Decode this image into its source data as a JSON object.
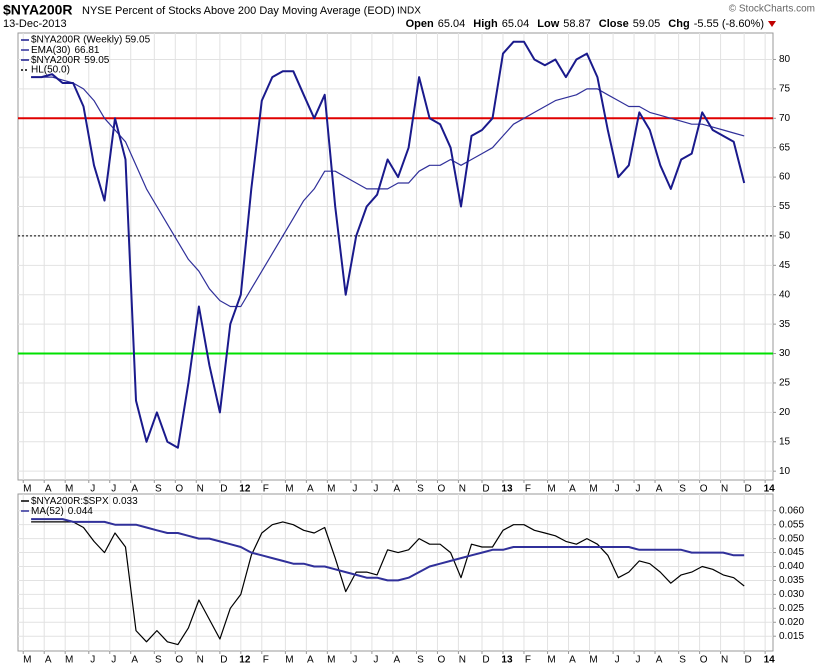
{
  "chart_data": [
    {
      "type": "line",
      "title": "$NYA200R",
      "subtitle": "NYSE Percent of Stocks Above 200 Day Moving Average (EOD)",
      "exchange": "INDX",
      "date": "13-Dec-2013",
      "source": "© StockCharts.com",
      "quote": [
        {
          "label": "Open",
          "value": 65.04
        },
        {
          "label": "High",
          "value": 65.04
        },
        {
          "label": "Low",
          "value": 58.87
        },
        {
          "label": "Close",
          "value": 59.05
        },
        {
          "label": "Chg",
          "value": "-5.55 (-8.60%)"
        }
      ],
      "price_legend": "$NYA200R (Weekly) 59.05",
      "x": [
        2011.2,
        2011.24,
        2011.28,
        2011.32,
        2011.36,
        2011.4,
        2011.44,
        2011.48,
        2011.52,
        2011.56,
        2011.6,
        2011.64,
        2011.68,
        2011.72,
        2011.76,
        2011.8,
        2011.84,
        2011.88,
        2011.92,
        2011.96,
        2012,
        2012.04,
        2012.08,
        2012.12,
        2012.16,
        2012.2,
        2012.24,
        2012.28,
        2012.32,
        2012.36,
        2012.4,
        2012.44,
        2012.48,
        2012.52,
        2012.56,
        2012.6,
        2012.64,
        2012.68,
        2012.72,
        2012.76,
        2012.8,
        2012.84,
        2012.88,
        2012.92,
        2012.96,
        2013,
        2013.04,
        2013.08,
        2013.12,
        2013.16,
        2013.2,
        2013.24,
        2013.28,
        2013.32,
        2013.36,
        2013.4,
        2013.44,
        2013.48,
        2013.52,
        2013.56,
        2013.6,
        2013.64,
        2013.68,
        2013.72,
        2013.76,
        2013.8,
        2013.84,
        2013.88,
        2013.92
      ],
      "series": [
        {
          "name": "EMA(30)",
          "legend_value": 66.81,
          "color": "#30309a",
          "values": [
            77,
            77,
            77,
            76.5,
            76,
            75,
            73,
            70,
            68,
            66,
            62,
            58,
            55,
            52,
            49,
            46,
            44,
            41,
            39,
            38,
            38,
            41,
            44,
            47,
            50,
            53,
            56,
            58,
            61,
            61,
            60,
            59,
            58,
            58,
            58,
            59,
            59,
            61,
            62,
            62,
            63,
            62,
            63,
            64,
            65,
            67,
            69,
            70,
            71,
            72,
            73,
            73.5,
            74,
            75,
            75,
            74,
            73,
            72,
            72,
            71,
            70.5,
            70,
            69.5,
            69,
            69,
            68.5,
            68,
            67.5,
            67
          ]
        },
        {
          "name": "$NYA200R",
          "legend_value": 59.05,
          "color": "#1a1a8c",
          "values": [
            77,
            77,
            77.5,
            76,
            76,
            72,
            62,
            56,
            70,
            63,
            22,
            15,
            20,
            15,
            14,
            25,
            38,
            28,
            20,
            35,
            40,
            58,
            73,
            77,
            78,
            78,
            74,
            70,
            74,
            55,
            40,
            50,
            55,
            57,
            63,
            60,
            65,
            77,
            70,
            69,
            65,
            55,
            67,
            68,
            70,
            81,
            83,
            83,
            80,
            79,
            80,
            77,
            80,
            81,
            77,
            68,
            60,
            62,
            71,
            68,
            62,
            58,
            63,
            64,
            71,
            68,
            67,
            66,
            59
          ]
        }
      ],
      "reference_lines": [
        {
          "name": "HL(50.0)",
          "value": 50,
          "color": "#000000",
          "style": "dotted"
        },
        {
          "value": 70,
          "color": "#e00000",
          "style": "solid"
        },
        {
          "value": 30,
          "color": "#00e000",
          "style": "solid"
        }
      ],
      "xlim": [
        2011.15,
        2014.03
      ],
      "ylim": [
        8.5,
        84.5
      ],
      "yticks": [
        10,
        15,
        20,
        25,
        30,
        35,
        40,
        45,
        50,
        55,
        60,
        65,
        70,
        75,
        80
      ],
      "xticks": [
        {
          "value": 2011.17,
          "label": "M"
        },
        {
          "value": 2011.25,
          "label": "A"
        },
        {
          "value": 2011.33,
          "label": "M"
        },
        {
          "value": 2011.42,
          "label": "J"
        },
        {
          "value": 2011.5,
          "label": "J"
        },
        {
          "value": 2011.58,
          "label": "A"
        },
        {
          "value": 2011.67,
          "label": "S"
        },
        {
          "value": 2011.75,
          "label": "O"
        },
        {
          "value": 2011.83,
          "label": "N"
        },
        {
          "value": 2011.92,
          "label": "D"
        },
        {
          "value": 2012,
          "label": "12"
        },
        {
          "value": 2012.08,
          "label": "F"
        },
        {
          "value": 2012.17,
          "label": "M"
        },
        {
          "value": 2012.25,
          "label": "A"
        },
        {
          "value": 2012.33,
          "label": "M"
        },
        {
          "value": 2012.42,
          "label": "J"
        },
        {
          "value": 2012.5,
          "label": "J"
        },
        {
          "value": 2012.58,
          "label": "A"
        },
        {
          "value": 2012.67,
          "label": "S"
        },
        {
          "value": 2012.75,
          "label": "O"
        },
        {
          "value": 2012.83,
          "label": "N"
        },
        {
          "value": 2012.92,
          "label": "D"
        },
        {
          "value": 2013,
          "label": "13"
        },
        {
          "value": 2013.08,
          "label": "F"
        },
        {
          "value": 2013.17,
          "label": "M"
        },
        {
          "value": 2013.25,
          "label": "A"
        },
        {
          "value": 2013.33,
          "label": "M"
        },
        {
          "value": 2013.42,
          "label": "J"
        },
        {
          "value": 2013.5,
          "label": "J"
        },
        {
          "value": 2013.58,
          "label": "A"
        },
        {
          "value": 2013.67,
          "label": "S"
        },
        {
          "value": 2013.75,
          "label": "O"
        },
        {
          "value": 2013.83,
          "label": "N"
        },
        {
          "value": 2013.92,
          "label": "D"
        },
        {
          "value": 2014,
          "label": "14"
        }
      ],
      "grid": true
    },
    {
      "type": "line",
      "x": [
        2011.2,
        2011.24,
        2011.28,
        2011.32,
        2011.36,
        2011.4,
        2011.44,
        2011.48,
        2011.52,
        2011.56,
        2011.6,
        2011.64,
        2011.68,
        2011.72,
        2011.76,
        2011.8,
        2011.84,
        2011.88,
        2011.92,
        2011.96,
        2012,
        2012.04,
        2012.08,
        2012.12,
        2012.16,
        2012.2,
        2012.24,
        2012.28,
        2012.32,
        2012.36,
        2012.4,
        2012.44,
        2012.48,
        2012.52,
        2012.56,
        2012.6,
        2012.64,
        2012.68,
        2012.72,
        2012.76,
        2012.8,
        2012.84,
        2012.88,
        2012.92,
        2012.96,
        2013,
        2013.04,
        2013.08,
        2013.12,
        2013.16,
        2013.2,
        2013.24,
        2013.28,
        2013.32,
        2013.36,
        2013.4,
        2013.44,
        2013.48,
        2013.52,
        2013.56,
        2013.6,
        2013.64,
        2013.68,
        2013.72,
        2013.76,
        2013.8,
        2013.84,
        2013.88,
        2013.92
      ],
      "series": [
        {
          "name": "$NYA200R:$SPX",
          "legend_value": 0.033,
          "color": "#000000",
          "values": [
            0.056,
            0.056,
            0.056,
            0.056,
            0.056,
            0.054,
            0.049,
            0.045,
            0.052,
            0.047,
            0.017,
            0.013,
            0.017,
            0.013,
            0.012,
            0.018,
            0.028,
            0.021,
            0.014,
            0.025,
            0.03,
            0.044,
            0.052,
            0.055,
            0.056,
            0.055,
            0.053,
            0.052,
            0.054,
            0.043,
            0.031,
            0.038,
            0.038,
            0.037,
            0.046,
            0.045,
            0.046,
            0.05,
            0.048,
            0.048,
            0.045,
            0.036,
            0.048,
            0.047,
            0.047,
            0.053,
            0.055,
            0.055,
            0.053,
            0.052,
            0.051,
            0.049,
            0.048,
            0.05,
            0.048,
            0.044,
            0.036,
            0.038,
            0.042,
            0.041,
            0.038,
            0.034,
            0.037,
            0.038,
            0.04,
            0.039,
            0.037,
            0.036,
            0.033
          ]
        },
        {
          "name": "MA(52)",
          "legend_value": 0.044,
          "color": "#30309a",
          "values": [
            0.057,
            0.057,
            0.057,
            0.057,
            0.056,
            0.056,
            0.056,
            0.056,
            0.055,
            0.055,
            0.055,
            0.054,
            0.053,
            0.052,
            0.052,
            0.051,
            0.05,
            0.05,
            0.049,
            0.048,
            0.047,
            0.045,
            0.044,
            0.043,
            0.042,
            0.041,
            0.041,
            0.04,
            0.04,
            0.039,
            0.038,
            0.037,
            0.036,
            0.036,
            0.035,
            0.035,
            0.036,
            0.038,
            0.04,
            0.041,
            0.042,
            0.043,
            0.044,
            0.045,
            0.046,
            0.046,
            0.047,
            0.047,
            0.047,
            0.047,
            0.047,
            0.047,
            0.047,
            0.047,
            0.047,
            0.047,
            0.047,
            0.047,
            0.046,
            0.046,
            0.046,
            0.046,
            0.046,
            0.045,
            0.045,
            0.045,
            0.045,
            0.044,
            0.044
          ]
        }
      ],
      "xlim": [
        2011.15,
        2014.03
      ],
      "ylim": [
        0.0097,
        0.066
      ],
      "yticks": [
        0.015,
        {
          "value": 0.02,
          "label": "0.020"
        },
        0.025,
        {
          "value": 0.03,
          "label": "0.030"
        },
        0.035,
        {
          "value": 0.04,
          "label": "0.040"
        },
        0.045,
        {
          "value": 0.05,
          "label": "0.050"
        },
        0.055,
        {
          "value": 0.06,
          "label": "0.060"
        }
      ],
      "xticks": [
        {
          "value": 2011.17,
          "label": "M"
        },
        {
          "value": 2011.25,
          "label": "A"
        },
        {
          "value": 2011.33,
          "label": "M"
        },
        {
          "value": 2011.42,
          "label": "J"
        },
        {
          "value": 2011.5,
          "label": "J"
        },
        {
          "value": 2011.58,
          "label": "A"
        },
        {
          "value": 2011.67,
          "label": "S"
        },
        {
          "value": 2011.75,
          "label": "O"
        },
        {
          "value": 2011.83,
          "label": "N"
        },
        {
          "value": 2011.92,
          "label": "D"
        },
        {
          "value": 2012,
          "label": "12"
        },
        {
          "value": 2012.08,
          "label": "F"
        },
        {
          "value": 2012.17,
          "label": "M"
        },
        {
          "value": 2012.25,
          "label": "A"
        },
        {
          "value": 2012.33,
          "label": "M"
        },
        {
          "value": 2012.42,
          "label": "J"
        },
        {
          "value": 2012.5,
          "label": "J"
        },
        {
          "value": 2012.58,
          "label": "A"
        },
        {
          "value": 2012.67,
          "label": "S"
        },
        {
          "value": 2012.75,
          "label": "O"
        },
        {
          "value": 2012.83,
          "label": "N"
        },
        {
          "value": 2012.92,
          "label": "D"
        },
        {
          "value": 2013,
          "label": "13"
        },
        {
          "value": 2013.08,
          "label": "F"
        },
        {
          "value": 2013.17,
          "label": "M"
        },
        {
          "value": 2013.25,
          "label": "A"
        },
        {
          "value": 2013.33,
          "label": "M"
        },
        {
          "value": 2013.42,
          "label": "J"
        },
        {
          "value": 2013.5,
          "label": "J"
        },
        {
          "value": 2013.58,
          "label": "A"
        },
        {
          "value": 2013.67,
          "label": "S"
        },
        {
          "value": 2013.75,
          "label": "O"
        },
        {
          "value": 2013.83,
          "label": "N"
        },
        {
          "value": 2013.92,
          "label": "D"
        },
        {
          "value": 2014,
          "label": "14"
        }
      ],
      "grid": true
    }
  ]
}
